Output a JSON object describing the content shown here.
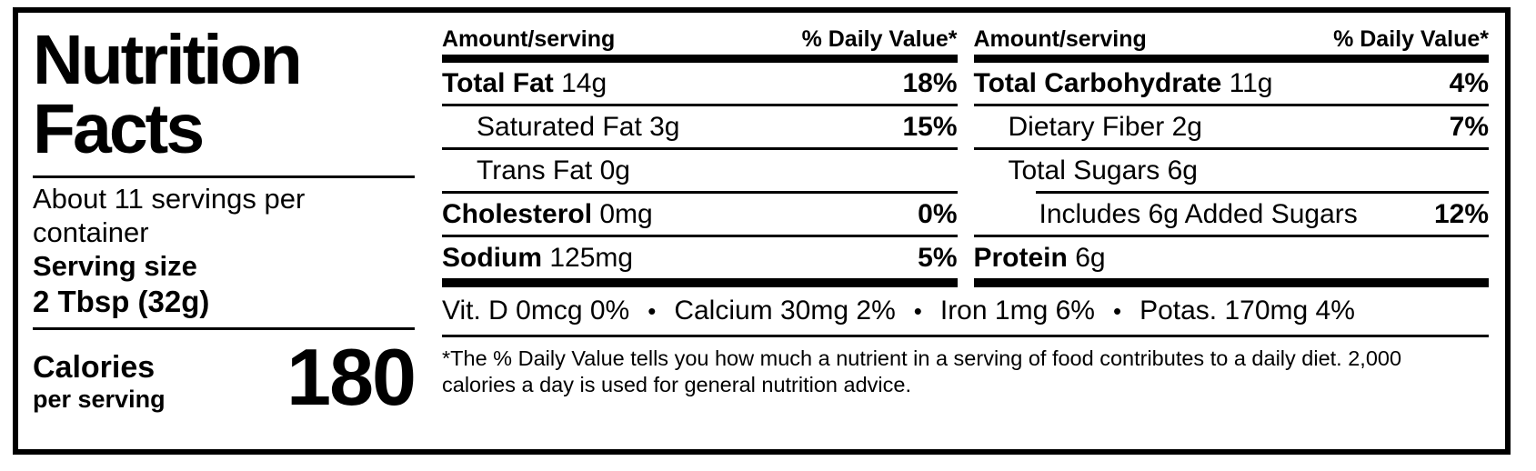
{
  "label_title": {
    "line1": "Nutrition",
    "line2": "Facts"
  },
  "serving_info": {
    "servings_per_container": "About 11 servings per container",
    "serving_size_label": "Serving size",
    "serving_size_value": "2 Tbsp (32g)"
  },
  "calories": {
    "label": "Calories",
    "sublabel": "per serving",
    "value": "180"
  },
  "columns": [
    {
      "header_left": "Amount/serving",
      "header_right": "% Daily Value*",
      "rows": [
        {
          "name": "Total Fat",
          "amount": "14g",
          "daily_value": "18%",
          "bold": true,
          "indent": 0
        },
        {
          "name": "Saturated Fat",
          "amount": "3g",
          "daily_value": "15%",
          "bold": false,
          "indent": 1
        },
        {
          "name": "Trans Fat",
          "amount": "0g",
          "daily_value": "",
          "bold": false,
          "indent": 1
        },
        {
          "name": "Cholesterol",
          "amount": "0mg",
          "daily_value": "0%",
          "bold": true,
          "indent": 0
        },
        {
          "name": "Sodium",
          "amount": "125mg",
          "daily_value": "5%",
          "bold": true,
          "indent": 0
        }
      ]
    },
    {
      "header_left": "Amount/serving",
      "header_right": "% Daily Value*",
      "rows": [
        {
          "name": "Total Carbohydrate",
          "amount": "11g",
          "daily_value": "4%",
          "bold": true,
          "indent": 0
        },
        {
          "name": "Dietary Fiber",
          "amount": "2g",
          "daily_value": "7%",
          "bold": false,
          "indent": 1
        },
        {
          "name": "Total Sugars",
          "amount": "6g",
          "daily_value": "",
          "bold": false,
          "indent": 1
        },
        {
          "name": "Includes 6g Added Sugars",
          "amount": "",
          "daily_value": "12%",
          "bold": false,
          "indent": 2
        },
        {
          "name": "Protein",
          "amount": "6g",
          "daily_value": "",
          "bold": true,
          "indent": 0
        }
      ]
    }
  ],
  "micronutrients": [
    "Vit. D 0mcg 0%",
    "Calcium 30mg 2%",
    "Iron 1mg 6%",
    "Potas. 170mg 4%"
  ],
  "footnote": "*The % Daily Value tells you how much a nutrient in a serving of food contributes to a daily diet. 2,000 calories a day is used for general nutrition advice.",
  "colors": {
    "ink": "#000000",
    "paper": "#ffffff"
  }
}
